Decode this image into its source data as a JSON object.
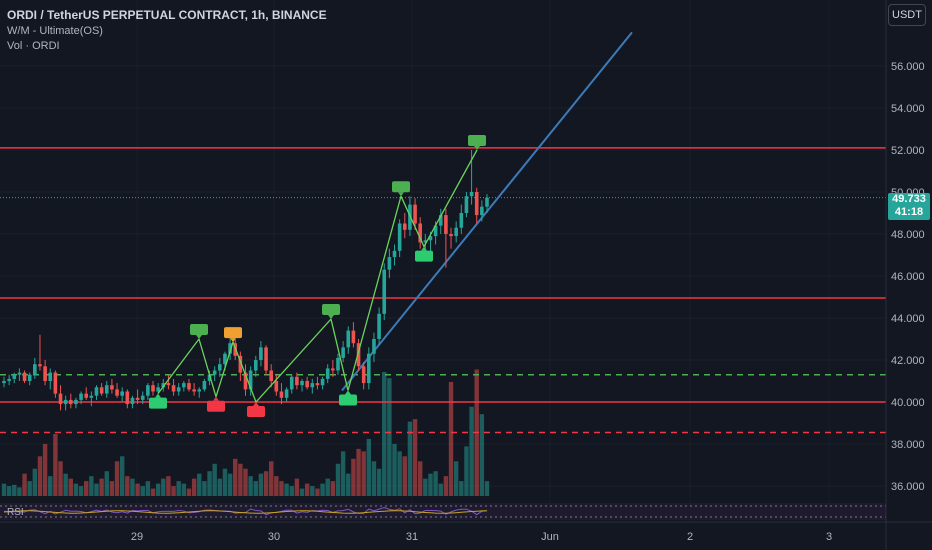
{
  "header": {
    "title": "ORDI / TetherUS PERPETUAL CONTRACT, 1h, BINANCE",
    "indicator1": "W/M - Ultimate(OS)",
    "indicator2": "Vol · ORDI",
    "currency_button": "USDT"
  },
  "last_price": {
    "value": "49.733",
    "countdown": "41:18"
  },
  "rsi_label": "RSI",
  "colors": {
    "bg": "#131722",
    "up": "#26a69a",
    "down": "#ef5350",
    "resistance": "#f23645",
    "support_dash": "#4caf50",
    "trendline": "#2962ff",
    "grid": "#2a2e39",
    "rsi_line": "#c9a227"
  },
  "chart_data": {
    "type": "candlestick",
    "y_axis_ticks": [
      "56.000",
      "54.000",
      "52.000",
      "50.000",
      "48.000",
      "46.000",
      "44.000",
      "42.000",
      "40.000",
      "38.000",
      "36.000"
    ],
    "x_axis_ticks": [
      "29",
      "30",
      "31",
      "Jun",
      "2",
      "3"
    ],
    "ylim": [
      35.6,
      57.8
    ],
    "horizontal_lines": [
      {
        "price": 52.1,
        "style": "solid"
      },
      {
        "price": 44.95,
        "style": "solid"
      },
      {
        "price": 40.0,
        "style": "solid"
      },
      {
        "price": 38.55,
        "style": "dashed"
      },
      {
        "price": 41.3,
        "style": "dashed-green"
      }
    ],
    "trendline": [
      {
        "x": 342,
        "price": 40.55
      },
      {
        "x": 632,
        "price": 57.6
      }
    ],
    "pattern_line_up": [
      {
        "x": 158,
        "price": 40.4
      },
      {
        "x": 199,
        "price": 43.0
      },
      {
        "x": 216,
        "price": 40.25
      },
      {
        "x": 233,
        "price": 42.85
      },
      {
        "x": 256,
        "price": 40.0
      },
      {
        "x": 331,
        "price": 43.95
      },
      {
        "x": 348,
        "price": 40.55
      },
      {
        "x": 401,
        "price": 49.8
      },
      {
        "x": 424,
        "price": 47.4
      },
      {
        "x": 477,
        "price": 52.0
      }
    ],
    "pivot_labels": [
      {
        "x": 158,
        "price": 40.4,
        "kind": "low-green"
      },
      {
        "x": 199,
        "price": 43.0,
        "kind": "high-green"
      },
      {
        "x": 216,
        "price": 40.25,
        "kind": "low-red"
      },
      {
        "x": 233,
        "price": 42.85,
        "kind": "high-orange"
      },
      {
        "x": 256,
        "price": 40.0,
        "kind": "low-red"
      },
      {
        "x": 331,
        "price": 43.95,
        "kind": "high-green"
      },
      {
        "x": 348,
        "price": 40.55,
        "kind": "low-green"
      },
      {
        "x": 401,
        "price": 49.8,
        "kind": "high-green"
      },
      {
        "x": 424,
        "price": 47.4,
        "kind": "low-green"
      },
      {
        "x": 477,
        "price": 52.0,
        "kind": "high-green"
      }
    ],
    "candles_ohlc": [
      [
        40.9,
        41.2,
        40.7,
        41.0
      ],
      [
        41.0,
        41.3,
        40.8,
        41.1
      ],
      [
        41.1,
        41.4,
        40.9,
        41.3
      ],
      [
        41.3,
        41.6,
        41.0,
        41.4
      ],
      [
        41.4,
        41.5,
        40.9,
        41.0
      ],
      [
        41.0,
        41.4,
        40.8,
        41.3
      ],
      [
        41.3,
        42.1,
        41.1,
        41.8
      ],
      [
        41.8,
        43.2,
        41.5,
        41.7
      ],
      [
        41.7,
        42.0,
        40.8,
        41.0
      ],
      [
        41.0,
        41.6,
        40.6,
        41.4
      ],
      [
        41.4,
        41.5,
        40.2,
        40.4
      ],
      [
        40.4,
        40.8,
        39.6,
        39.9
      ],
      [
        39.9,
        40.3,
        39.6,
        40.1
      ],
      [
        40.1,
        40.4,
        39.7,
        39.9
      ],
      [
        39.9,
        40.2,
        39.7,
        40.1
      ],
      [
        40.1,
        40.5,
        39.9,
        40.4
      ],
      [
        40.4,
        40.7,
        40.1,
        40.2
      ],
      [
        40.2,
        40.5,
        39.8,
        40.3
      ],
      [
        40.3,
        40.8,
        40.1,
        40.7
      ],
      [
        40.7,
        40.9,
        40.3,
        40.4
      ],
      [
        40.4,
        41.0,
        40.2,
        40.8
      ],
      [
        40.8,
        41.1,
        40.4,
        40.6
      ],
      [
        40.6,
        40.9,
        40.2,
        40.3
      ],
      [
        40.3,
        40.7,
        40.0,
        40.5
      ],
      [
        40.5,
        40.6,
        39.7,
        39.9
      ],
      [
        39.9,
        40.3,
        39.7,
        40.2
      ],
      [
        40.2,
        40.6,
        39.9,
        40.1
      ],
      [
        40.1,
        40.5,
        39.9,
        40.3
      ],
      [
        40.3,
        40.9,
        40.1,
        40.8
      ],
      [
        40.8,
        41.0,
        40.3,
        40.5
      ],
      [
        40.5,
        40.9,
        40.4,
        40.7
      ],
      [
        40.7,
        41.1,
        40.5,
        40.9
      ],
      [
        40.9,
        41.3,
        40.6,
        40.8
      ],
      [
        40.8,
        41.1,
        40.3,
        40.5
      ],
      [
        40.5,
        40.9,
        40.3,
        40.7
      ],
      [
        40.7,
        41.0,
        40.5,
        40.9
      ],
      [
        40.9,
        41.1,
        40.5,
        40.6
      ],
      [
        40.6,
        40.9,
        40.3,
        40.5
      ],
      [
        40.5,
        40.7,
        40.2,
        40.6
      ],
      [
        40.6,
        41.1,
        40.5,
        41.0
      ],
      [
        41.0,
        41.5,
        40.8,
        41.3
      ],
      [
        41.3,
        41.7,
        41.0,
        41.5
      ],
      [
        41.5,
        42.1,
        41.2,
        41.8
      ],
      [
        41.8,
        42.4,
        41.5,
        42.3
      ],
      [
        42.3,
        43.1,
        42.0,
        42.8
      ],
      [
        42.8,
        43.0,
        42.0,
        42.2
      ],
      [
        42.2,
        42.4,
        41.0,
        41.4
      ],
      [
        41.4,
        41.8,
        40.3,
        40.6
      ],
      [
        40.6,
        41.7,
        40.3,
        41.5
      ],
      [
        41.5,
        42.2,
        41.2,
        42.0
      ],
      [
        42.0,
        42.9,
        41.7,
        42.6
      ],
      [
        42.6,
        42.7,
        41.3,
        41.5
      ],
      [
        41.5,
        41.8,
        40.7,
        41.0
      ],
      [
        41.0,
        41.3,
        40.3,
        40.5
      ],
      [
        40.5,
        40.9,
        39.9,
        40.2
      ],
      [
        40.2,
        40.7,
        40.0,
        40.6
      ],
      [
        40.6,
        41.3,
        40.4,
        41.2
      ],
      [
        41.2,
        41.4,
        40.6,
        40.8
      ],
      [
        40.8,
        41.1,
        40.5,
        41.0
      ],
      [
        41.0,
        41.2,
        40.6,
        40.7
      ],
      [
        40.7,
        41.1,
        40.4,
        40.9
      ],
      [
        40.9,
        41.2,
        40.6,
        40.8
      ],
      [
        40.8,
        41.2,
        40.6,
        41.1
      ],
      [
        41.1,
        41.8,
        40.9,
        41.6
      ],
      [
        41.6,
        42.0,
        41.2,
        41.5
      ],
      [
        41.5,
        42.3,
        41.3,
        42.1
      ],
      [
        42.1,
        42.9,
        41.9,
        42.6
      ],
      [
        42.6,
        43.6,
        42.3,
        43.4
      ],
      [
        43.4,
        43.8,
        42.6,
        42.8
      ],
      [
        42.8,
        43.0,
        41.5,
        41.7
      ],
      [
        41.7,
        41.9,
        40.6,
        40.9
      ],
      [
        40.9,
        42.6,
        40.6,
        42.3
      ],
      [
        42.3,
        43.3,
        41.9,
        43.0
      ],
      [
        43.0,
        44.5,
        42.7,
        44.2
      ],
      [
        44.2,
        46.6,
        43.9,
        46.3
      ],
      [
        46.3,
        47.3,
        45.9,
        46.9
      ],
      [
        46.9,
        47.5,
        46.5,
        47.2
      ],
      [
        47.2,
        48.7,
        46.9,
        48.5
      ],
      [
        48.5,
        49.0,
        47.8,
        48.2
      ],
      [
        48.2,
        49.8,
        47.9,
        49.4
      ],
      [
        49.4,
        49.7,
        48.2,
        48.5
      ],
      [
        48.5,
        48.8,
        47.3,
        47.6
      ],
      [
        47.6,
        48.0,
        46.9,
        47.7
      ],
      [
        47.7,
        48.1,
        47.2,
        47.9
      ],
      [
        47.9,
        48.6,
        47.5,
        48.4
      ],
      [
        48.4,
        49.2,
        48.0,
        48.9
      ],
      [
        48.9,
        49.2,
        46.4,
        48.0
      ],
      [
        48.0,
        48.3,
        47.3,
        47.9
      ],
      [
        47.9,
        48.6,
        47.6,
        48.3
      ],
      [
        48.3,
        49.4,
        48.0,
        49.0
      ],
      [
        49.0,
        50.0,
        48.8,
        49.8
      ],
      [
        49.8,
        52.0,
        49.4,
        50.0
      ],
      [
        50.0,
        50.2,
        48.5,
        48.9
      ],
      [
        48.9,
        49.6,
        48.6,
        49.3
      ],
      [
        49.3,
        49.9,
        49.0,
        49.73
      ]
    ],
    "volumes_relative": [
      0.1,
      0.08,
      0.09,
      0.07,
      0.18,
      0.12,
      0.22,
      0.32,
      0.42,
      0.16,
      0.5,
      0.28,
      0.18,
      0.14,
      0.1,
      0.08,
      0.12,
      0.16,
      0.1,
      0.14,
      0.2,
      0.12,
      0.28,
      0.32,
      0.16,
      0.14,
      0.1,
      0.08,
      0.12,
      0.06,
      0.1,
      0.14,
      0.16,
      0.08,
      0.12,
      0.1,
      0.06,
      0.14,
      0.18,
      0.12,
      0.2,
      0.26,
      0.14,
      0.22,
      0.18,
      0.3,
      0.26,
      0.22,
      0.16,
      0.12,
      0.18,
      0.2,
      0.28,
      0.16,
      0.12,
      0.1,
      0.08,
      0.14,
      0.06,
      0.1,
      0.08,
      0.06,
      0.1,
      0.14,
      0.12,
      0.26,
      0.36,
      0.18,
      0.3,
      0.38,
      0.36,
      0.46,
      0.28,
      0.22,
      1.0,
      0.95,
      0.42,
      0.36,
      0.32,
      0.6,
      0.62,
      0.28,
      0.14,
      0.18,
      0.2,
      0.1,
      0.16,
      0.92,
      0.28,
      0.12,
      0.4,
      0.72,
      1.02,
      0.66,
      0.12
    ]
  }
}
